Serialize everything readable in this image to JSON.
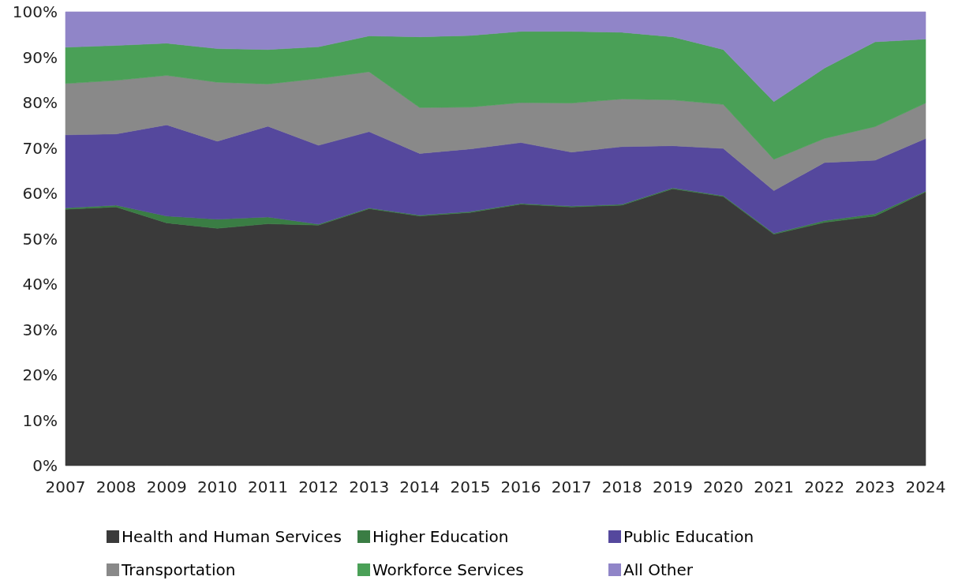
{
  "chart_data": {
    "type": "area",
    "stacked": true,
    "categories": [
      "2007",
      "2008",
      "2009",
      "2010",
      "2011",
      "2012",
      "2013",
      "2014",
      "2015",
      "2016",
      "2017",
      "2018",
      "2019",
      "2020",
      "2021",
      "2022",
      "2023",
      "2024"
    ],
    "series": [
      {
        "name": "Health and Human Services",
        "color": "#3a3a3a",
        "values": [
          56.5,
          57,
          53.5,
          52.3,
          53.3,
          53,
          56.6,
          55,
          55.8,
          57.6,
          57,
          57.4,
          61,
          59.3,
          51,
          53.6,
          55,
          60.3
        ]
      },
      {
        "name": "Higher Education",
        "color": "#3a7d44",
        "values": [
          0.3,
          0.4,
          1.5,
          2,
          1.5,
          0.2,
          0.2,
          0.2,
          0.2,
          0.2,
          0.2,
          0.2,
          0.2,
          0.2,
          0.2,
          0.4,
          0.5,
          0.2
        ]
      },
      {
        "name": "Public Education",
        "color": "#55489d",
        "values": [
          16.1,
          15.7,
          20.1,
          17.2,
          20,
          17.4,
          16.8,
          13.6,
          13.8,
          13.4,
          11.9,
          12.7,
          9.3,
          10.4,
          9.4,
          12.8,
          11.8,
          11.6
        ]
      },
      {
        "name": "Transportation",
        "color": "#898989",
        "values": [
          11.3,
          11.8,
          10.9,
          13,
          9.3,
          14.7,
          13.2,
          10.1,
          9.2,
          8.8,
          10.8,
          10.5,
          10.1,
          9.7,
          6.9,
          5.3,
          7.4,
          7.8
        ]
      },
      {
        "name": "Workforce Services",
        "color": "#4aa057",
        "values": [
          8,
          7.7,
          7.1,
          7.4,
          7.6,
          7,
          7.9,
          15.6,
          15.8,
          15.7,
          15.8,
          14.7,
          13.9,
          12.1,
          12.7,
          15.5,
          18.7,
          14.1
        ]
      },
      {
        "name": "All Other",
        "color": "#9085c8",
        "values": [
          7.8,
          7.4,
          6.9,
          8.1,
          8.3,
          7.7,
          5.3,
          5.5,
          5.2,
          4.3,
          4.3,
          4.5,
          5.5,
          8.3,
          19.8,
          12.4,
          6.6,
          6
        ]
      }
    ],
    "ylim": [
      0,
      100
    ],
    "yticks": [
      {
        "value": 0,
        "label": "0%"
      },
      {
        "value": 10,
        "label": "10%"
      },
      {
        "value": 20,
        "label": "20%"
      },
      {
        "value": 30,
        "label": "30%"
      },
      {
        "value": 40,
        "label": "40%"
      },
      {
        "value": 50,
        "label": "50%"
      },
      {
        "value": 60,
        "label": "60%"
      },
      {
        "value": 70,
        "label": "70%"
      },
      {
        "value": 80,
        "label": "80%"
      },
      {
        "value": 90,
        "label": "90%"
      },
      {
        "value": 100,
        "label": "100%"
      }
    ],
    "legend": "bottom"
  }
}
